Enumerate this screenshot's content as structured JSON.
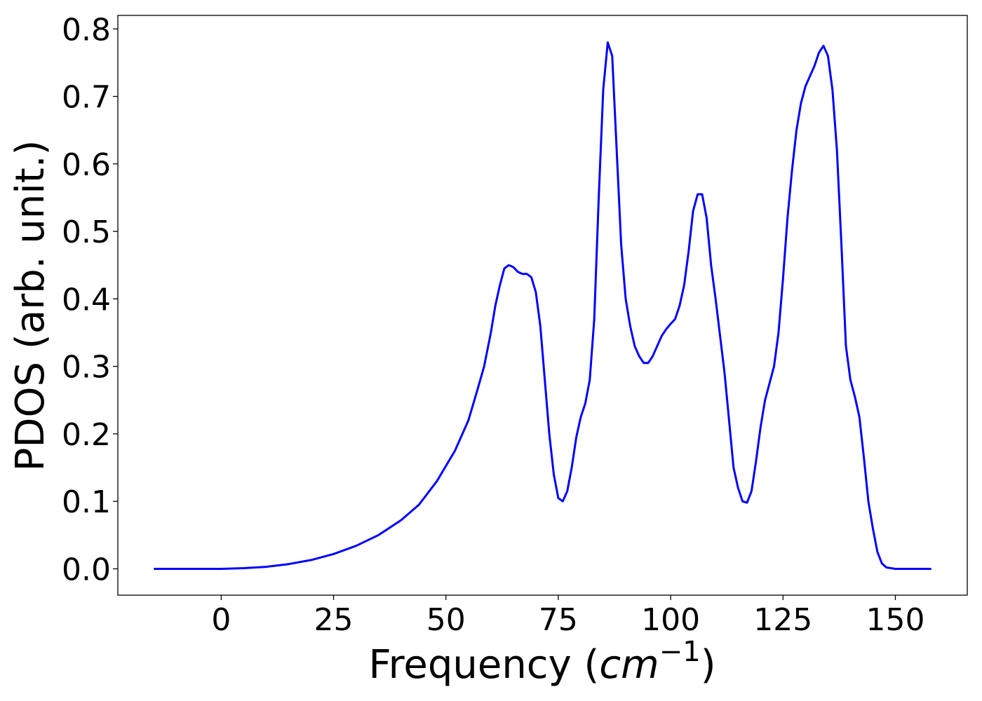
{
  "chart_data": {
    "type": "line",
    "xlabel_text": "Frequency (",
    "xlabel_math": "cm",
    "xlabel_sup": "−1",
    "xlabel_close": ")",
    "ylabel": "PDOS (arb. unit.)",
    "xlim": [
      -23,
      166
    ],
    "ylim": [
      -0.039,
      0.82
    ],
    "xticks": [
      0,
      25,
      50,
      75,
      100,
      125,
      150
    ],
    "xtick_labels": [
      "0",
      "25",
      "50",
      "75",
      "100",
      "125",
      "150"
    ],
    "yticks": [
      0.0,
      0.1,
      0.2,
      0.3,
      0.4,
      0.5,
      0.6,
      0.7,
      0.8
    ],
    "ytick_labels": [
      "0.0",
      "0.1",
      "0.2",
      "0.3",
      "0.4",
      "0.5",
      "0.6",
      "0.7",
      "0.8"
    ],
    "grid": false,
    "line_color": "#0000ff",
    "series": [
      {
        "x": [
          -15,
          -5,
          0,
          5,
          10,
          15,
          20,
          25,
          30,
          35,
          40,
          44,
          48,
          52,
          55,
          57,
          58.5,
          60,
          61,
          62,
          63,
          64,
          65,
          66,
          67,
          68,
          69,
          70,
          71,
          72,
          73,
          74,
          75,
          76,
          77,
          78,
          79,
          80,
          81,
          82,
          83,
          84,
          85,
          86,
          87,
          88,
          89,
          90,
          91,
          92,
          93,
          94,
          95,
          96,
          97,
          98,
          99,
          100,
          101,
          102,
          103,
          104,
          105,
          106,
          107,
          108,
          109,
          110,
          111,
          112,
          113,
          114,
          115,
          116,
          117,
          118,
          119,
          120,
          121,
          122,
          123,
          124,
          125,
          126,
          127,
          128,
          129,
          130,
          131,
          132,
          133,
          134,
          135,
          136,
          137,
          138,
          139,
          140,
          141,
          142,
          143,
          144,
          145,
          146,
          147,
          148,
          150,
          158
        ],
        "y": [
          0.0,
          0.0,
          0.0,
          0.001,
          0.003,
          0.007,
          0.013,
          0.022,
          0.034,
          0.05,
          0.072,
          0.095,
          0.13,
          0.175,
          0.22,
          0.265,
          0.3,
          0.35,
          0.39,
          0.42,
          0.445,
          0.45,
          0.447,
          0.44,
          0.437,
          0.437,
          0.432,
          0.41,
          0.36,
          0.28,
          0.2,
          0.14,
          0.105,
          0.1,
          0.115,
          0.15,
          0.195,
          0.225,
          0.245,
          0.28,
          0.37,
          0.55,
          0.71,
          0.78,
          0.76,
          0.62,
          0.48,
          0.4,
          0.36,
          0.33,
          0.315,
          0.305,
          0.305,
          0.315,
          0.33,
          0.345,
          0.355,
          0.363,
          0.37,
          0.39,
          0.42,
          0.47,
          0.53,
          0.555,
          0.555,
          0.52,
          0.45,
          0.4,
          0.345,
          0.29,
          0.22,
          0.15,
          0.12,
          0.1,
          0.098,
          0.115,
          0.16,
          0.21,
          0.25,
          0.275,
          0.3,
          0.35,
          0.43,
          0.52,
          0.59,
          0.65,
          0.69,
          0.715,
          0.73,
          0.745,
          0.765,
          0.775,
          0.76,
          0.71,
          0.62,
          0.48,
          0.33,
          0.28,
          0.255,
          0.225,
          0.165,
          0.1,
          0.06,
          0.025,
          0.008,
          0.002,
          0.0,
          0.0
        ]
      }
    ]
  }
}
